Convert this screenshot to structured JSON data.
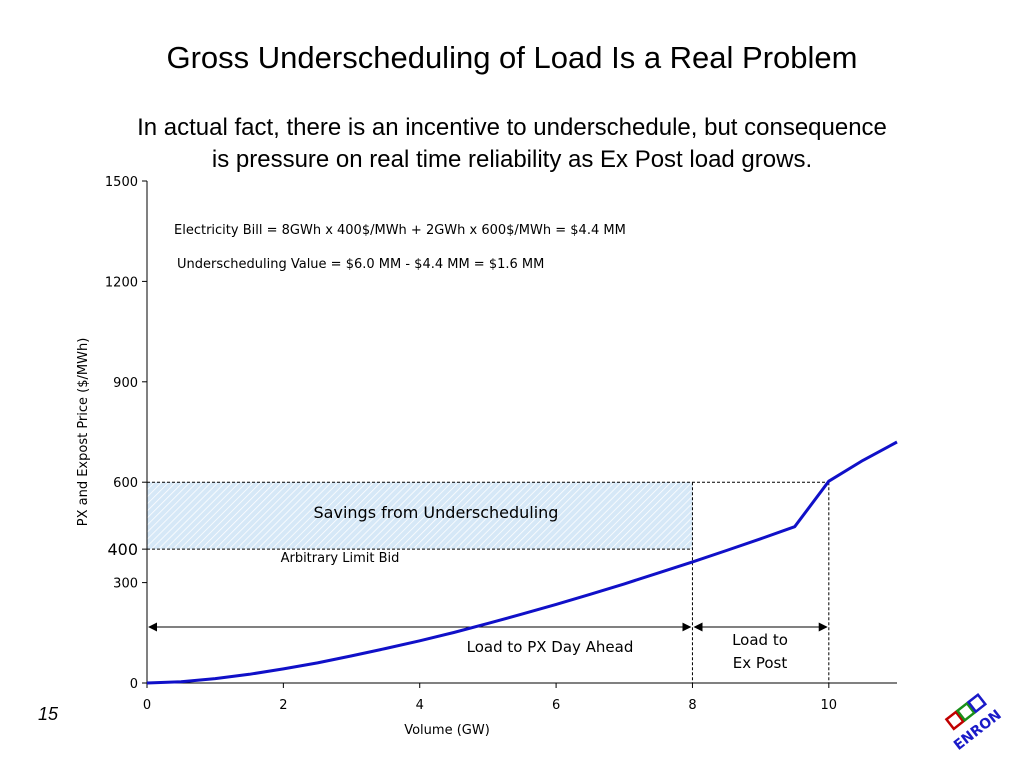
{
  "slide": {
    "title": "Gross Underscheduling of Load Is a Real Problem",
    "subtitle_line1": "In actual fact, there is an incentive to underschedule, but consequence",
    "subtitle_line2": "is pressure on real time reliability as Ex Post load grows.",
    "page_number": "15",
    "logo_text": "ENRON"
  },
  "chart_data": {
    "type": "line",
    "xlabel": "Volume (GW)",
    "ylabel": "PX and Expost Price ($/MWh)",
    "xlim": [
      0,
      11
    ],
    "ylim": [
      0,
      1500
    ],
    "x_ticks": [
      0,
      2,
      4,
      6,
      8,
      10
    ],
    "y_ticks": [
      0,
      300,
      400,
      600,
      900,
      1200,
      1500
    ],
    "grid": false,
    "series": [
      {
        "color": "#1010c8",
        "x": [
          0,
          0.5,
          1,
          1.5,
          2,
          2.5,
          3,
          3.5,
          4,
          4.5,
          5,
          5.5,
          6,
          6.5,
          7,
          7.5,
          8,
          8.5,
          9,
          9.5,
          10,
          10.5,
          11
        ],
        "y": [
          0,
          4,
          13,
          26,
          42,
          60,
          81,
          103,
          126,
          151,
          178,
          206,
          235,
          265,
          296,
          329,
          362,
          396,
          431,
          467,
          603,
          665,
          720
        ]
      }
    ],
    "annotations": {
      "formula1": "Electricity Bill = 8GWh x 400$/MWh + 2GWh x 600$/MWh = $4.4 MM",
      "formula2": "Underscheduling Value = $6.0 MM - $4.4 MM = $1.6 MM",
      "savings_label": "Savings from Underscheduling",
      "limit_bid_label": "Arbitrary Limit Bid",
      "load_px_label": "Load to PX Day Ahead",
      "load_expost_line1": "Load to",
      "load_expost_line2": "Ex Post"
    },
    "savings_region": {
      "x": [
        0,
        8
      ],
      "y": [
        400,
        600
      ]
    },
    "limit_bid_price": 400,
    "expost_price": 600,
    "px_volume": 8,
    "expost_volume": 10,
    "shade_color": "#d6e8f7",
    "shade_hatch_color": "#ffffff"
  }
}
